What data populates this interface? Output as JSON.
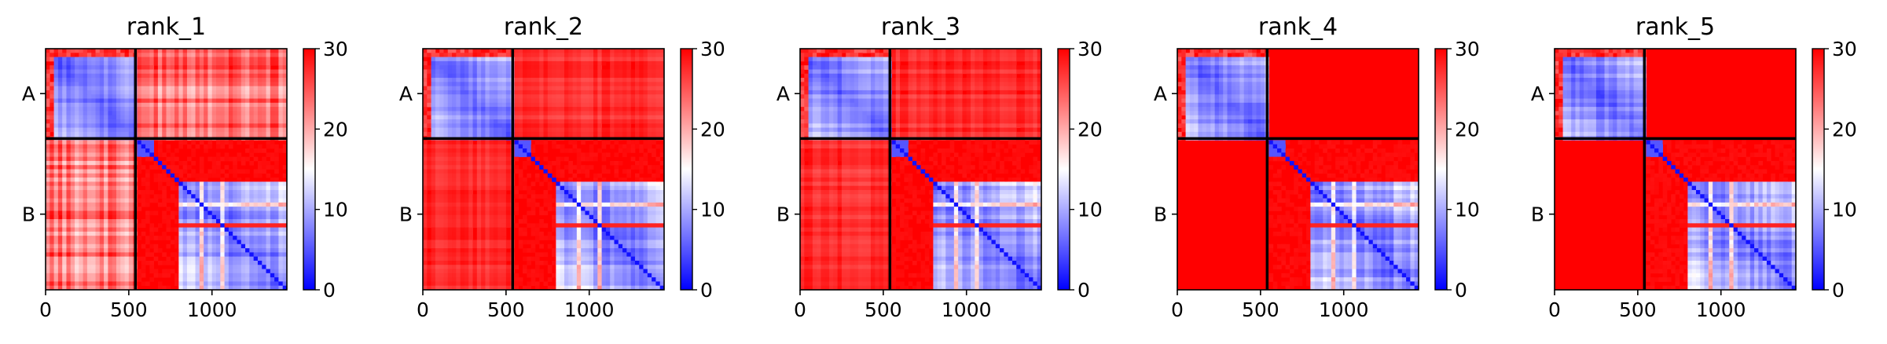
{
  "figure": {
    "background": "#ffffff"
  },
  "colormap": {
    "low": "#0000ff",
    "mid": "#ffffff",
    "high": "#ff0000"
  },
  "chart_data": [
    {
      "type": "heatmap",
      "title": "rank_1",
      "xlabel": "",
      "ylabel": "",
      "xlim": [
        0,
        1450
      ],
      "x_ticks": [
        0,
        500,
        1000
      ],
      "x_tick_labels": [
        "0",
        "500",
        "1000"
      ],
      "boundary": 540,
      "chain_labels": [
        "A",
        "B"
      ],
      "colorbar": {
        "vmin": 0,
        "vmax": 30,
        "ticks": [
          0,
          10,
          20,
          30
        ],
        "tick_labels": [
          "0",
          "10",
          "20",
          "30"
        ]
      },
      "inter_chain_texture": "strong"
    },
    {
      "type": "heatmap",
      "title": "rank_2",
      "xlabel": "",
      "ylabel": "",
      "xlim": [
        0,
        1450
      ],
      "x_ticks": [
        0,
        500,
        1000
      ],
      "x_tick_labels": [
        "0",
        "500",
        "1000"
      ],
      "boundary": 540,
      "chain_labels": [
        "A",
        "B"
      ],
      "colorbar": {
        "vmin": 0,
        "vmax": 30,
        "ticks": [
          0,
          10,
          20,
          30
        ],
        "tick_labels": [
          "0",
          "10",
          "20",
          "30"
        ]
      },
      "inter_chain_texture": "faint"
    },
    {
      "type": "heatmap",
      "title": "rank_3",
      "xlabel": "",
      "ylabel": "",
      "xlim": [
        0,
        1450
      ],
      "x_ticks": [
        0,
        500,
        1000
      ],
      "x_tick_labels": [
        "0",
        "500",
        "1000"
      ],
      "boundary": 540,
      "chain_labels": [
        "A",
        "B"
      ],
      "colorbar": {
        "vmin": 0,
        "vmax": 30,
        "ticks": [
          0,
          10,
          20,
          30
        ],
        "tick_labels": [
          "0",
          "10",
          "20",
          "30"
        ]
      },
      "inter_chain_texture": "faint"
    },
    {
      "type": "heatmap",
      "title": "rank_4",
      "xlabel": "",
      "ylabel": "",
      "xlim": [
        0,
        1450
      ],
      "x_ticks": [
        0,
        500,
        1000
      ],
      "x_tick_labels": [
        "0",
        "500",
        "1000"
      ],
      "boundary": 540,
      "chain_labels": [
        "A",
        "B"
      ],
      "colorbar": {
        "vmin": 0,
        "vmax": 30,
        "ticks": [
          0,
          10,
          20,
          30
        ],
        "tick_labels": [
          "0",
          "10",
          "20",
          "30"
        ]
      },
      "inter_chain_texture": "none"
    },
    {
      "type": "heatmap",
      "title": "rank_5",
      "xlabel": "",
      "ylabel": "",
      "xlim": [
        0,
        1450
      ],
      "x_ticks": [
        0,
        500,
        1000
      ],
      "x_tick_labels": [
        "0",
        "500",
        "1000"
      ],
      "boundary": 540,
      "chain_labels": [
        "A",
        "B"
      ],
      "colorbar": {
        "vmin": 0,
        "vmax": 30,
        "ticks": [
          0,
          10,
          20,
          30
        ],
        "tick_labels": [
          "0",
          "10",
          "20",
          "30"
        ]
      },
      "inter_chain_texture": "none"
    }
  ]
}
